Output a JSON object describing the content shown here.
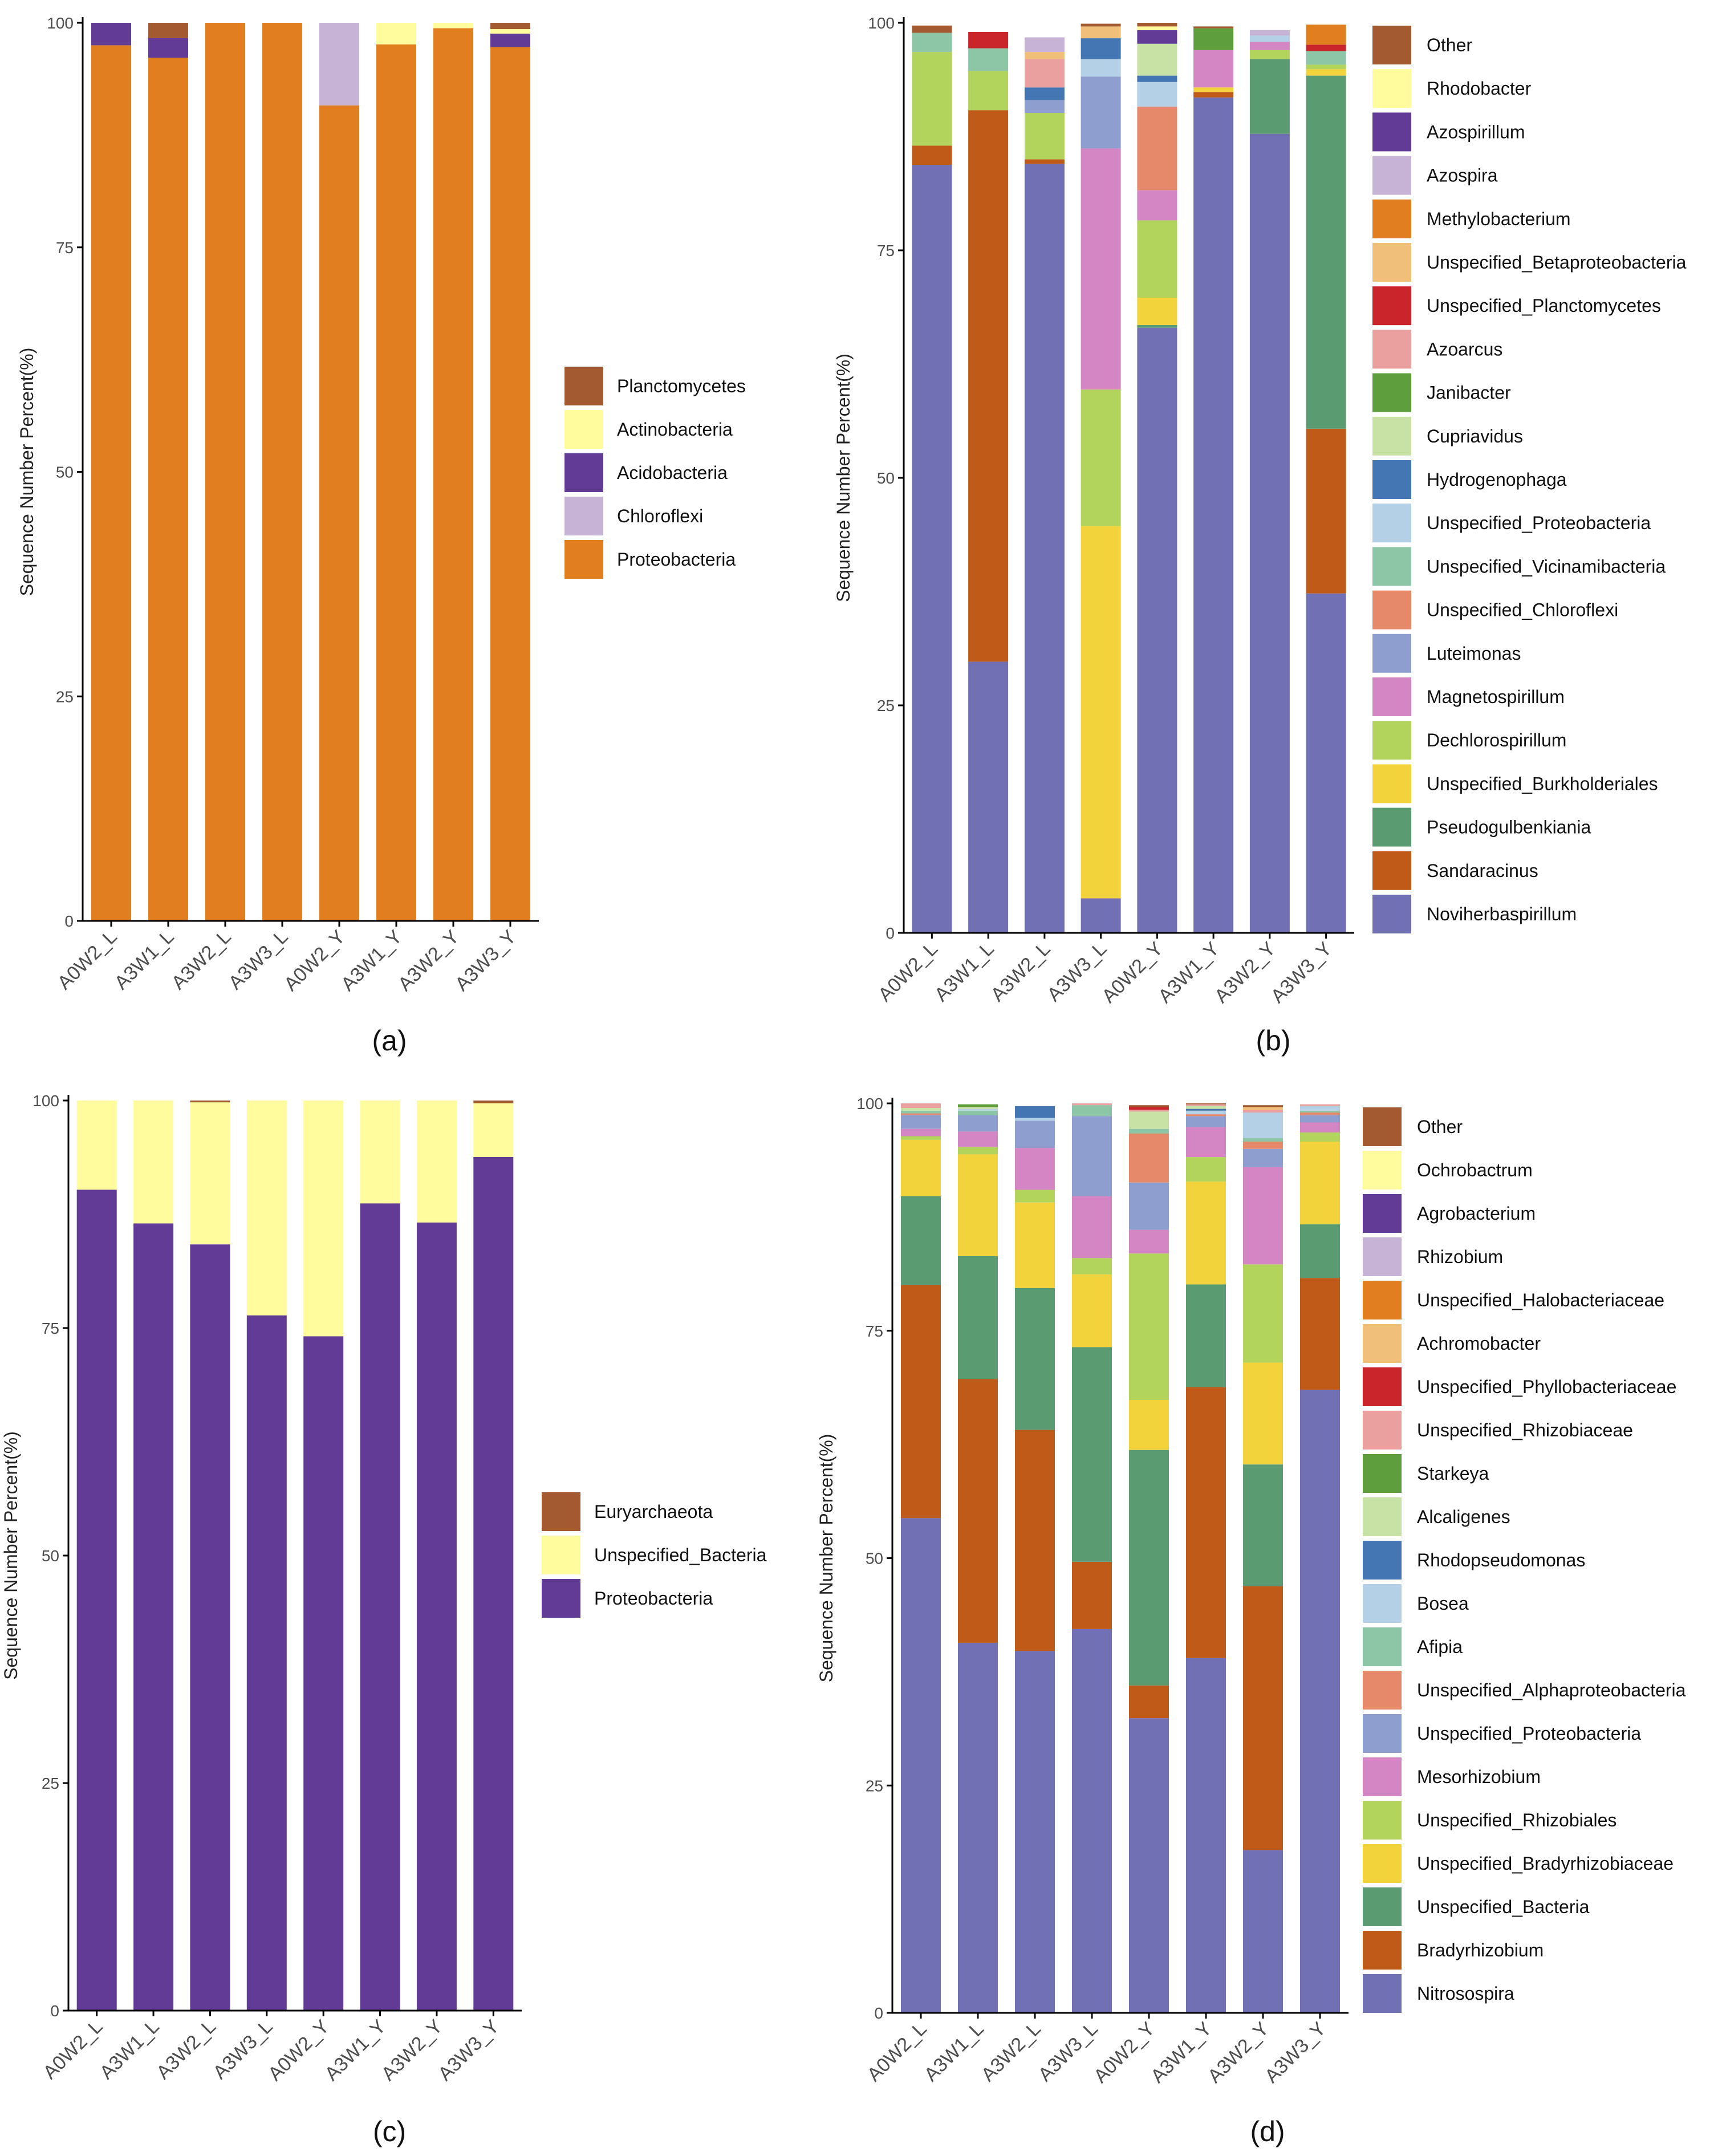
{
  "figure": {
    "background": "#ffffff",
    "axis_color": "#000000",
    "tick_text_color": "#4d4d4d"
  },
  "chart_data": [
    {
      "id": "a",
      "panel_label": "(a)",
      "type": "bar",
      "stacked": true,
      "ylabel": "Sequence Number Percent(%)",
      "xlabel": "",
      "ylim": [
        0,
        100
      ],
      "yticks": [
        "0",
        "25",
        "50",
        "75",
        "100"
      ],
      "categories": [
        "A0W2_L",
        "A3W1_L",
        "A3W2_L",
        "A3W3_L",
        "A0W2_Y",
        "A3W1_Y",
        "A3W2_Y",
        "A3W3_Y"
      ],
      "legend_position": "right",
      "series": [
        {
          "name": "Proteobacteria",
          "color": "#E17E1F",
          "values": [
            97.5,
            96.1,
            100,
            100,
            90.8,
            97.6,
            99.4,
            97.3
          ]
        },
        {
          "name": "Chloroflexi",
          "color": "#C7B3D6",
          "values": [
            0,
            0,
            0,
            0,
            9.2,
            0,
            0,
            0
          ]
        },
        {
          "name": "Acidobacteria",
          "color": "#613B96",
          "values": [
            2.5,
            2.2,
            0,
            0,
            0,
            0,
            0,
            1.5
          ]
        },
        {
          "name": "Actinobacteria",
          "color": "#FFFC9E",
          "values": [
            0,
            0,
            0,
            0,
            0,
            2.4,
            0.6,
            0.5
          ]
        },
        {
          "name": "Planctomycetes",
          "color": "#A35A30",
          "values": [
            0,
            1.7,
            0,
            0,
            0,
            0,
            0,
            0.7
          ]
        }
      ]
    },
    {
      "id": "b",
      "panel_label": "(b)",
      "type": "bar",
      "stacked": true,
      "ylabel": "Sequence Number Percent(%)",
      "xlabel": "",
      "ylim": [
        0,
        100
      ],
      "yticks": [
        "0",
        "25",
        "50",
        "75",
        "100"
      ],
      "categories": [
        "A0W2_L",
        "A3W1_L",
        "A3W2_L",
        "A3W3_L",
        "A0W2_Y",
        "A3W1_Y",
        "A3W2_Y",
        "A3W3_Y"
      ],
      "legend_position": "right",
      "series": [
        {
          "name": "Noviherbaspirillum",
          "color": "#7270B4",
          "values": [
            84.4,
            29.8,
            84.5,
            3.8,
            66.5,
            91.8,
            87.8,
            37.3
          ]
        },
        {
          "name": "Sandaracinus",
          "color": "#C05A18",
          "values": [
            2.1,
            60.6,
            0.5,
            0,
            0,
            0.6,
            0,
            18.1
          ]
        },
        {
          "name": "Pseudogulbenkiania",
          "color": "#5A9B72",
          "values": [
            0,
            0,
            0,
            0,
            0.3,
            0,
            8.2,
            38.8
          ]
        },
        {
          "name": "Unspecified_Burkholderiales",
          "color": "#F2D33B",
          "values": [
            0,
            0,
            0,
            40.9,
            3.0,
            0.5,
            0,
            0.7
          ]
        },
        {
          "name": "Dechlorospirillum",
          "color": "#B3D45C",
          "values": [
            10.3,
            4.3,
            5.1,
            15.0,
            8.5,
            0,
            1.0,
            0.5
          ]
        },
        {
          "name": "Magnetospirillum",
          "color": "#D385C4",
          "values": [
            0,
            0,
            0,
            26.5,
            3.3,
            4.1,
            0.9,
            0
          ]
        },
        {
          "name": "Luteimonas",
          "color": "#8E9ECE",
          "values": [
            0,
            0,
            1.4,
            7.9,
            0,
            0,
            0,
            0
          ]
        },
        {
          "name": "Unspecified_Chloroflexi",
          "color": "#E6886A",
          "values": [
            0,
            0,
            0,
            0,
            9.2,
            0,
            0,
            0
          ]
        },
        {
          "name": "Unspecified_Vicinamibacteria",
          "color": "#8CC6A7",
          "values": [
            2.1,
            2.5,
            0,
            0,
            0,
            0,
            0,
            1.5
          ]
        },
        {
          "name": "Unspecified_Proteobacteria",
          "color": "#B4D0E6",
          "values": [
            0,
            0,
            0,
            1.9,
            2.7,
            0,
            0.7,
            0
          ]
        },
        {
          "name": "Hydrogenophaga",
          "color": "#4476B4",
          "values": [
            0,
            0,
            1.4,
            2.3,
            0.7,
            0,
            0,
            0
          ]
        },
        {
          "name": "Cupriavidus",
          "color": "#C8E1A5",
          "values": [
            0,
            0,
            0,
            0,
            3.5,
            0,
            0,
            0
          ]
        },
        {
          "name": "Janibacter",
          "color": "#5E9E3C",
          "values": [
            0,
            0,
            0,
            0,
            0,
            2.4,
            0,
            0
          ]
        },
        {
          "name": "Azoarcus",
          "color": "#E9A09E",
          "values": [
            0,
            0,
            3.1,
            0,
            0,
            0,
            0,
            0
          ]
        },
        {
          "name": "Unspecified_Planctomycetes",
          "color": "#C9252B",
          "values": [
            0,
            1.8,
            0,
            0,
            0,
            0,
            0,
            0.7
          ]
        },
        {
          "name": "Unspecified_Betaproteobacteria",
          "color": "#F0C07A",
          "values": [
            0,
            0,
            0.8,
            1.3,
            0,
            0,
            0,
            0
          ]
        },
        {
          "name": "Methylobacterium",
          "color": "#E17E1F",
          "values": [
            0,
            0,
            0,
            0,
            0,
            0,
            0,
            2.2
          ]
        },
        {
          "name": "Azospira",
          "color": "#C7B3D6",
          "values": [
            0,
            0,
            1.6,
            0,
            0,
            0,
            0.6,
            0
          ]
        },
        {
          "name": "Azospirillum",
          "color": "#613B96",
          "values": [
            0,
            0,
            0,
            0,
            1.5,
            0,
            0,
            0
          ]
        },
        {
          "name": "Rhodobacter",
          "color": "#FFFC9E",
          "values": [
            0,
            0,
            0,
            0,
            0.4,
            0,
            0,
            0
          ]
        },
        {
          "name": "Other",
          "color": "#A35A30",
          "values": [
            0.8,
            0,
            0,
            0.3,
            0.4,
            0.2,
            0,
            0
          ]
        }
      ]
    },
    {
      "id": "c",
      "panel_label": "(c)",
      "type": "bar",
      "stacked": true,
      "ylabel": "Sequence Number Percent(%)",
      "xlabel": "",
      "ylim": [
        0,
        100
      ],
      "yticks": [
        "0",
        "25",
        "50",
        "75",
        "100"
      ],
      "categories": [
        "A0W2_L",
        "A3W1_L",
        "A3W2_L",
        "A3W3_L",
        "A0W2_Y",
        "A3W1_Y",
        "A3W2_Y",
        "A3W3_Y"
      ],
      "legend_position": "right",
      "series": [
        {
          "name": "Proteobacteria",
          "color": "#613B96",
          "values": [
            90.2,
            86.5,
            84.2,
            76.4,
            74.1,
            88.7,
            86.6,
            93.8
          ]
        },
        {
          "name": "Unspecified_Bacteria",
          "color": "#FFFC9E",
          "values": [
            9.8,
            13.5,
            15.6,
            23.6,
            25.9,
            11.3,
            13.4,
            5.9
          ]
        },
        {
          "name": "Euryarchaeota",
          "color": "#A35A30",
          "values": [
            0,
            0,
            0.2,
            0,
            0,
            0,
            0,
            0.3
          ]
        }
      ]
    },
    {
      "id": "d",
      "panel_label": "(d)",
      "type": "bar",
      "stacked": true,
      "ylabel": "Sequence Number Percent(%)",
      "xlabel": "",
      "ylim": [
        0,
        100
      ],
      "yticks": [
        "0",
        "25",
        "50",
        "75",
        "100"
      ],
      "categories": [
        "A0W2_L",
        "A3W1_L",
        "A3W2_L",
        "A3W3_L",
        "A0W2_Y",
        "A3W1_Y",
        "A3W2_Y",
        "A3W3_Y"
      ],
      "legend_position": "right",
      "series": [
        {
          "name": "Nitrosospira",
          "color": "#7270B4",
          "values": [
            54.4,
            40.7,
            39.8,
            42.2,
            32.4,
            39.0,
            17.9,
            68.5
          ]
        },
        {
          "name": "Bradyrhizobium",
          "color": "#C05A18",
          "values": [
            25.6,
            29.0,
            24.3,
            7.4,
            3.6,
            29.8,
            29.0,
            12.3
          ]
        },
        {
          "name": "Unspecified_Bacteria",
          "color": "#5A9B72",
          "values": [
            9.8,
            13.5,
            15.6,
            23.6,
            25.9,
            11.3,
            13.4,
            5.9
          ]
        },
        {
          "name": "Unspecified_Bradyrhizobiaceae",
          "color": "#F2D33B",
          "values": [
            6.2,
            11.2,
            9.4,
            8.0,
            5.5,
            11.3,
            11.2,
            9.1
          ]
        },
        {
          "name": "Unspecified_Rhizobiales",
          "color": "#B3D45C",
          "values": [
            0.4,
            0.8,
            1.4,
            1.8,
            16.1,
            2.7,
            10.8,
            1.0
          ]
        },
        {
          "name": "Mesorhizobium",
          "color": "#D385C4",
          "values": [
            0.8,
            1.7,
            4.6,
            6.8,
            2.6,
            3.3,
            10.7,
            1.1
          ]
        },
        {
          "name": "Unspecified_Proteobacteria",
          "color": "#8E9ECE",
          "values": [
            1.5,
            1.8,
            3.0,
            8.8,
            5.2,
            1.2,
            2.0,
            0.8
          ]
        },
        {
          "name": "Unspecified_Alphaproteobacteria",
          "color": "#E6886A",
          "values": [
            0.2,
            0,
            0,
            0,
            5.4,
            0.2,
            0.8,
            0.3
          ]
        },
        {
          "name": "Afipia",
          "color": "#8CC6A7",
          "values": [
            0.3,
            0.5,
            0,
            1.2,
            0.5,
            0,
            0.4,
            0.2
          ]
        },
        {
          "name": "Bosea",
          "color": "#B4D0E6",
          "values": [
            0,
            0.2,
            0.3,
            0,
            0,
            0.4,
            2.8,
            0.5
          ]
        },
        {
          "name": "Rhodopseudomonas",
          "color": "#4476B4",
          "values": [
            0,
            0,
            1.3,
            0,
            0,
            0.2,
            0,
            0
          ]
        },
        {
          "name": "Alcaligenes",
          "color": "#C8E1A5",
          "values": [
            0.3,
            0.2,
            0,
            0,
            1.9,
            0.3,
            0,
            0
          ]
        },
        {
          "name": "Starkeya",
          "color": "#5E9E3C",
          "values": [
            0,
            0.3,
            0,
            0,
            0,
            0,
            0,
            0
          ]
        },
        {
          "name": "Unspecified_Rhizobiaceae",
          "color": "#E9A09E",
          "values": [
            0.5,
            0,
            0,
            0.2,
            0.2,
            0.2,
            0.3,
            0.2
          ]
        },
        {
          "name": "Unspecified_Phyllobacteriaceae",
          "color": "#C9252B",
          "values": [
            0,
            0,
            0,
            0,
            0.3,
            0,
            0,
            0
          ]
        },
        {
          "name": "Achromobacter",
          "color": "#F0C07A",
          "values": [
            0,
            0,
            0,
            0,
            0,
            0,
            0.3,
            0
          ]
        },
        {
          "name": "Unspecified_Halobacteriaceae",
          "color": "#E17E1F",
          "values": [
            0,
            0,
            0,
            0,
            0,
            0,
            0,
            0
          ]
        },
        {
          "name": "Rhizobium",
          "color": "#C7B3D6",
          "values": [
            0,
            0,
            0,
            0,
            0,
            0,
            0,
            0
          ]
        },
        {
          "name": "Agrobacterium",
          "color": "#613B96",
          "values": [
            0,
            0,
            0,
            0,
            0,
            0,
            0,
            0
          ]
        },
        {
          "name": "Ochrobactrum",
          "color": "#FFFC9E",
          "values": [
            0,
            0,
            0,
            0,
            0,
            0,
            0,
            0
          ]
        },
        {
          "name": "Other",
          "color": "#A35A30",
          "values": [
            0,
            0,
            0,
            0,
            0.2,
            0.1,
            0.2,
            0
          ]
        }
      ]
    }
  ]
}
